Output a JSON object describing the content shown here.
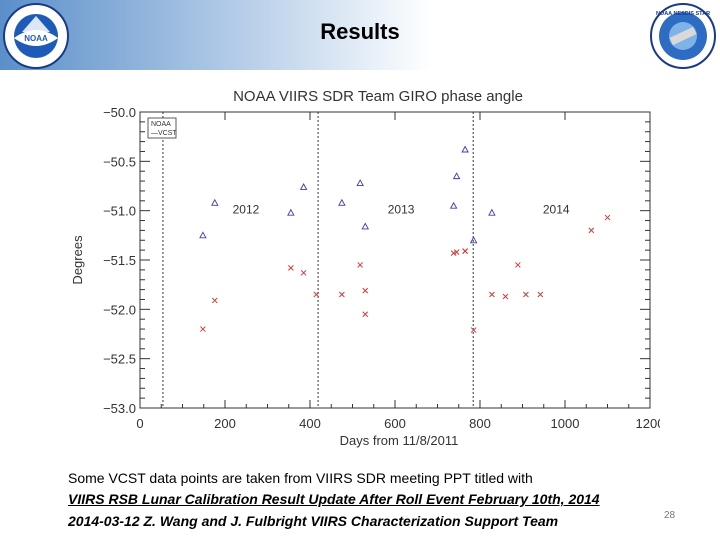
{
  "slide": {
    "title": "Results",
    "caption_line1": "Some VCST data points are taken from VIIRS SDR meeting PPT titled with",
    "caption_line2": "VIIRS RSB Lunar Calibration Result Update After Roll Event February 10th, 2014",
    "caption_line3": "2014-03-12  Z. Wang and J. Fulbright  VIIRS Characterization Support Team",
    "page_number": "28",
    "left_logo_text": "NOAA",
    "right_logo_text": "NOAA NESDIS STAR"
  },
  "chart_data": {
    "type": "scatter",
    "title": "NOAA VIIRS SDR Team GIRO phase angle",
    "xlabel": "Days from 11/8/2011",
    "ylabel": "Degrees",
    "xlim": [
      0,
      1200
    ],
    "ylim": [
      -53.0,
      -50.0
    ],
    "y_reversed": true,
    "x_ticks": [
      "0",
      "200",
      "400",
      "600",
      "800",
      "1000",
      "1200"
    ],
    "y_ticks": [
      "−50.0",
      "−50.5",
      "−51.0",
      "−51.5",
      "−52.0",
      "−52.5",
      "−53.0"
    ],
    "year_markers": [
      {
        "x": 54,
        "label": "2012"
      },
      {
        "x": 419,
        "label": "2013"
      },
      {
        "x": 784,
        "label": "2014"
      }
    ],
    "grid": false,
    "legend_position": "top-left",
    "series": [
      {
        "name": "NOAA",
        "marker": "triangle",
        "color": "#3b3bb8",
        "x": [
          148,
          176,
          355,
          385,
          475,
          518,
          530,
          738,
          745,
          765,
          785,
          828
        ],
        "y": [
          -51.25,
          -50.92,
          -51.02,
          -50.76,
          -50.92,
          -50.72,
          -51.16,
          -50.95,
          -50.65,
          -50.38,
          -51.3,
          -51.02
        ]
      },
      {
        "name": "VCST",
        "marker": "x",
        "color": "#d43a3a",
        "x": [
          148,
          176,
          355,
          385,
          475,
          518,
          530,
          738,
          745,
          765,
          785,
          828,
          889,
          942,
          1062,
          1100,
          530,
          415,
          765,
          860,
          908
        ],
        "y": [
          -52.2,
          -51.91,
          -51.58,
          -51.63,
          -51.85,
          -51.55,
          -52.05,
          -51.43,
          -51.42,
          -51.41,
          -52.21,
          -51.85,
          -51.55,
          -51.85,
          -51.2,
          -51.07,
          -51.81,
          -51.85,
          -51.41,
          -51.87,
          -51.85
        ]
      }
    ]
  }
}
